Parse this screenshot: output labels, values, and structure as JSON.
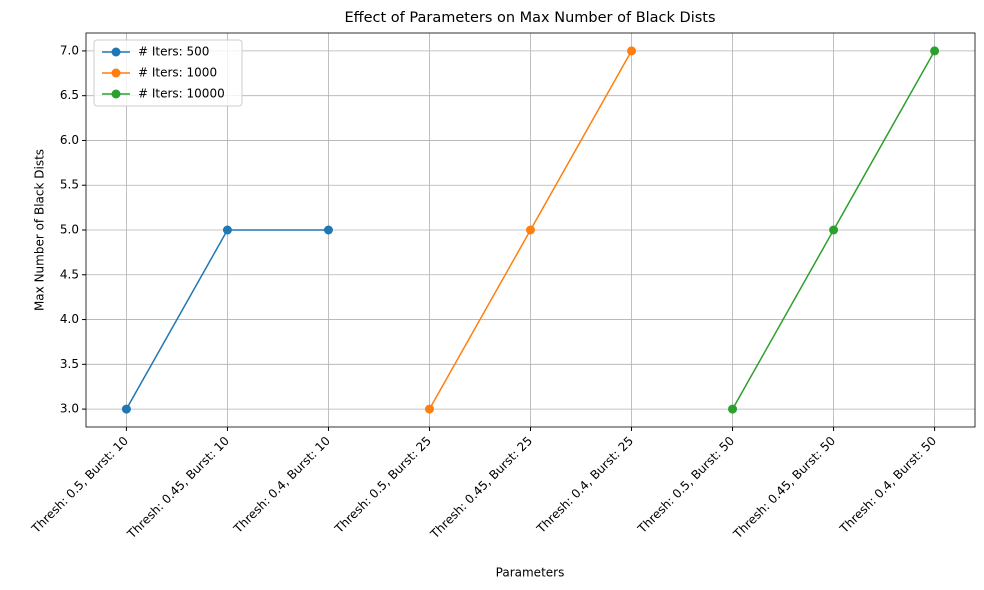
{
  "chart_data": {
    "type": "line",
    "title": "Effect of Parameters on Max Number of Black Dists",
    "x_label": "Parameters",
    "y_label": "Max Number of Black Dists",
    "categories": [
      "Thresh: 0.5, Burst: 10",
      "Thresh: 0.45, Burst: 10",
      "Thresh: 0.4, Burst: 10",
      "Thresh: 0.5, Burst: 25",
      "Thresh: 0.45, Burst: 25",
      "Thresh: 0.4, Burst: 25",
      "Thresh: 0.5, Burst: 50",
      "Thresh: 0.45, Burst: 50",
      "Thresh: 0.4, Burst: 50"
    ],
    "series": [
      {
        "name": "# Iters: 500",
        "color": "#1f77b4",
        "values": [
          3,
          5,
          5,
          null,
          null,
          null,
          null,
          null,
          null
        ]
      },
      {
        "name": "# Iters: 1000",
        "color": "#ff7f0e",
        "values": [
          null,
          null,
          null,
          3,
          5,
          7,
          null,
          null,
          null
        ]
      },
      {
        "name": "# Iters: 10000",
        "color": "#2ca02c",
        "values": [
          null,
          null,
          null,
          null,
          null,
          null,
          3,
          5,
          7
        ]
      }
    ],
    "ylim": [
      2.8,
      7.2
    ],
    "yticks": [
      {
        "value": 3,
        "label": "3.0"
      },
      3.5,
      {
        "value": 4,
        "label": "4.0"
      },
      4.5,
      {
        "value": 5,
        "label": "5.0"
      },
      5.5,
      {
        "value": 6,
        "label": "6.0"
      },
      6.5,
      {
        "value": 7,
        "label": "7.0"
      }
    ],
    "grid": true,
    "legend": "upper left"
  }
}
